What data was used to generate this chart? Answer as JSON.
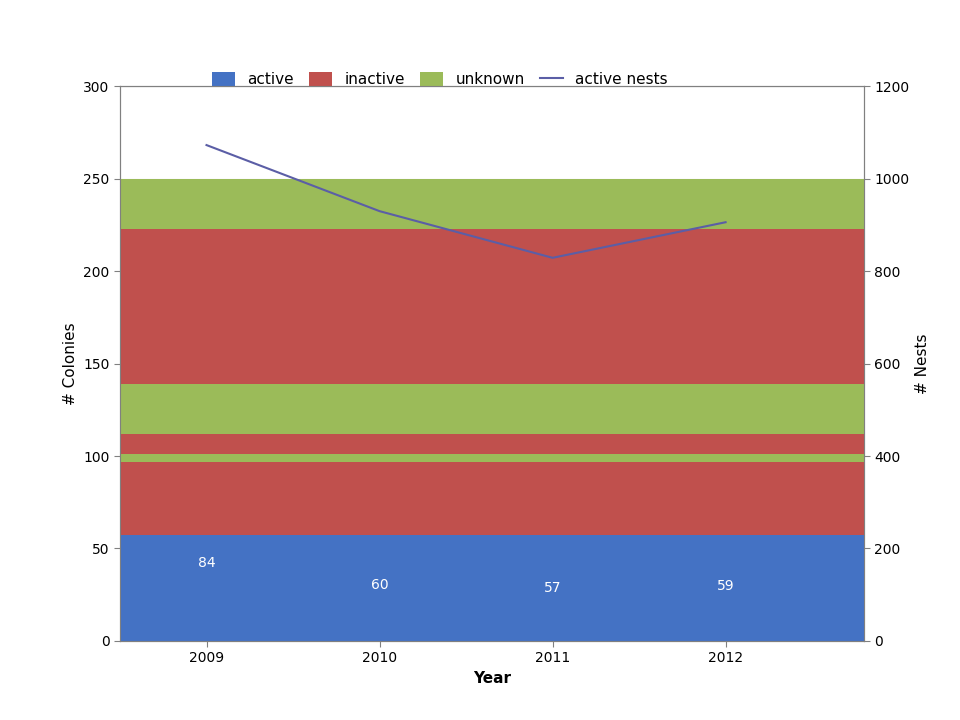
{
  "years": [
    2009,
    2010,
    2011,
    2012
  ],
  "active": [
    84,
    60,
    57,
    59
  ],
  "inactive": [
    139,
    37,
    41,
    53
  ],
  "unknown": [
    27,
    1,
    3,
    27
  ],
  "nests": [
    1073,
    930,
    829,
    906
  ],
  "bar_colors": {
    "active": "#4472C4",
    "inactive": "#C0504D",
    "unknown": "#9BBB59"
  },
  "line_color": "#5B5EA6",
  "ylabel_left": "# Colonies",
  "ylabel_right": "# Nests",
  "xlabel": "Year",
  "ylim_left": [
    0,
    300
  ],
  "ylim_right": [
    0,
    1200
  ],
  "yticks_left": [
    0,
    50,
    100,
    150,
    200,
    250,
    300
  ],
  "yticks_right": [
    0,
    200,
    400,
    600,
    800,
    1000,
    1200
  ],
  "legend_labels": [
    "active",
    "inactive",
    "unknown",
    "active nests"
  ],
  "bar_width": 0.35,
  "label_fontsize": 11,
  "tick_fontsize": 10,
  "annotation_fontsize": 10,
  "background_color": "#FFFFFF",
  "plot_bg_color": "#FFFFFF",
  "grid_color": "#C8C8C8",
  "spine_color": "#808080"
}
